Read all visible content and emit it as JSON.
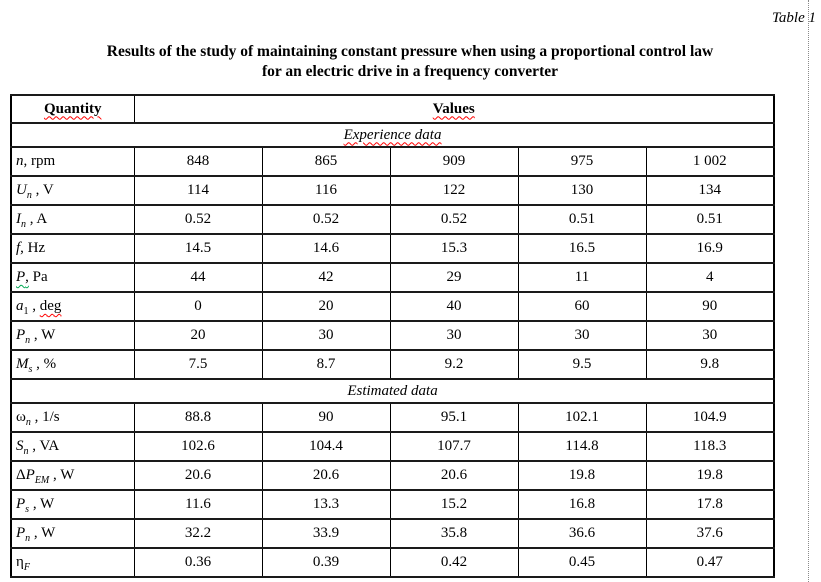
{
  "page": {
    "caption": "Table 1"
  },
  "title": {
    "line1": "Results of the study of maintaining constant pressure when using a proportional control law",
    "line2": "for an electric drive in a frequency converter"
  },
  "table": {
    "header": {
      "quantity": "Quantity",
      "values": "Values"
    },
    "sections": [
      {
        "label": "Experience data",
        "squiggle": "red",
        "rows": [
          {
            "label": [
              {
                "t": "n",
                "f": "i"
              },
              {
                "t": ", rpm"
              }
            ],
            "values": [
              "848",
              "865",
              "909",
              "975",
              "1 002"
            ]
          },
          {
            "label": [
              {
                "t": "U",
                "f": "i"
              },
              {
                "t": "n",
                "f": "is"
              },
              {
                "t": " , V"
              }
            ],
            "values": [
              "114",
              "116",
              "122",
              "130",
              "134"
            ]
          },
          {
            "label": [
              {
                "t": "I",
                "f": "i"
              },
              {
                "t": "n",
                "f": "is"
              },
              {
                "t": " , A"
              }
            ],
            "values": [
              "0.52",
              "0.52",
              "0.52",
              "0.51",
              "0.51"
            ]
          },
          {
            "label": [
              {
                "t": "f",
                "f": "i"
              },
              {
                "t": ", Hz"
              }
            ],
            "values": [
              "14.5",
              "14.6",
              "15.3",
              "16.5",
              "16.9"
            ]
          },
          {
            "label": [
              {
                "t": "P",
                "f": "i",
                "u": "green"
              },
              {
                "t": ",",
                "u": "green"
              },
              {
                "t": " Pa"
              }
            ],
            "values": [
              "44",
              "42",
              "29",
              "11",
              "4"
            ]
          },
          {
            "label": [
              {
                "t": "a",
                "f": "i"
              },
              {
                "t": "1",
                "f": "s"
              },
              {
                "t": " , "
              },
              {
                "t": "deg",
                "u": "red"
              }
            ],
            "values": [
              "0",
              "20",
              "40",
              "60",
              "90"
            ]
          },
          {
            "label": [
              {
                "t": "P",
                "f": "i"
              },
              {
                "t": "n",
                "f": "is"
              },
              {
                "t": " , W"
              }
            ],
            "values": [
              "20",
              "30",
              "30",
              "30",
              "30"
            ]
          },
          {
            "label": [
              {
                "t": "M",
                "f": "i"
              },
              {
                "t": "s",
                "f": "is"
              },
              {
                "t": " , %"
              }
            ],
            "values": [
              "7.5",
              "8.7",
              "9.2",
              "9.5",
              "9.8"
            ]
          }
        ]
      },
      {
        "label": "Estimated data",
        "squiggle": null,
        "rows": [
          {
            "label": [
              {
                "t": "ω"
              },
              {
                "t": "n",
                "f": "is"
              },
              {
                "t": " , 1/s"
              }
            ],
            "values": [
              "88.8",
              "90",
              "95.1",
              "102.1",
              "104.9"
            ]
          },
          {
            "label": [
              {
                "t": "S",
                "f": "i"
              },
              {
                "t": "n",
                "f": "is"
              },
              {
                "t": " , VA"
              }
            ],
            "values": [
              "102.6",
              "104.4",
              "107.7",
              "114.8",
              "118.3"
            ]
          },
          {
            "label": [
              {
                "t": "Δ"
              },
              {
                "t": "P",
                "f": "i"
              },
              {
                "t": "EM",
                "f": "is"
              },
              {
                "t": " , W"
              }
            ],
            "values": [
              "20.6",
              "20.6",
              "20.6",
              "19.8",
              "19.8"
            ]
          },
          {
            "label": [
              {
                "t": "P",
                "f": "i"
              },
              {
                "t": "s",
                "f": "is"
              },
              {
                "t": " , W"
              }
            ],
            "values": [
              "11.6",
              "13.3",
              "15.2",
              "16.8",
              "17.8"
            ]
          },
          {
            "label": [
              {
                "t": "P",
                "f": "i"
              },
              {
                "t": "n",
                "f": "is"
              },
              {
                "t": " , W"
              }
            ],
            "values": [
              "32.2",
              "33.9",
              "35.8",
              "36.6",
              "37.6"
            ]
          },
          {
            "label": [
              {
                "t": "η"
              },
              {
                "t": "F",
                "f": "is"
              }
            ],
            "values": [
              "0.36",
              "0.39",
              "0.42",
              "0.45",
              "0.47"
            ]
          }
        ]
      }
    ]
  }
}
